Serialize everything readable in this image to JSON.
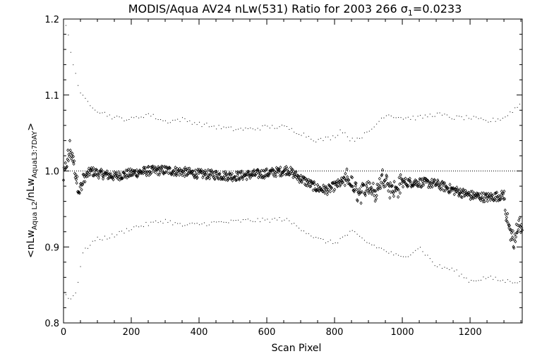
{
  "chart_data": {
    "type": "scatter",
    "title_main": "MODIS/Aqua AV24 nLw(531) Ratio for 2003 266 ",
    "title_sigma_symbol": "σ",
    "title_sigma_sub": "1",
    "title_sigma_value": "=0.0233",
    "xlabel": "Scan Pixel",
    "ylabel_parts": [
      {
        "text": "<nLw",
        "sub": false
      },
      {
        "text": "Aqua L2",
        "sub": true
      },
      {
        "text": "/nLw",
        "sub": false
      },
      {
        "text": "AquaL3:7DAY",
        "sub": true
      },
      {
        "text": ">",
        "sub": false
      }
    ],
    "xlim": [
      0,
      1354
    ],
    "ylim": [
      0.8,
      1.2
    ],
    "xticks": [
      0,
      200,
      400,
      600,
      800,
      1000,
      1200
    ],
    "xtick_labels": [
      "0",
      "200",
      "400",
      "600",
      "800",
      "1000",
      "1200"
    ],
    "yticks": [
      0.8,
      0.9,
      1.0,
      1.1,
      1.2
    ],
    "ytick_labels": [
      "0.8",
      "0.9",
      "1.0",
      "1.1",
      "1.2"
    ],
    "reference_line": 1.0,
    "series": [
      {
        "role": "ratio",
        "marker": "diamond",
        "keypoints": [
          [
            0,
            0.99
          ],
          [
            10,
            1.01
          ],
          [
            20,
            1.03
          ],
          [
            30,
            1.01
          ],
          [
            40,
            0.985
          ],
          [
            50,
            0.975
          ],
          [
            60,
            0.99
          ],
          [
            80,
            1.0
          ],
          [
            100,
            0.997
          ],
          [
            150,
            0.993
          ],
          [
            200,
            0.997
          ],
          [
            250,
            1.0
          ],
          [
            300,
            1.001
          ],
          [
            350,
            0.999
          ],
          [
            400,
            0.996
          ],
          [
            450,
            0.995
          ],
          [
            500,
            0.993
          ],
          [
            550,
            0.995
          ],
          [
            600,
            0.997
          ],
          [
            650,
            1.0
          ],
          [
            660,
            1.002
          ],
          [
            700,
            0.99
          ],
          [
            750,
            0.977
          ],
          [
            780,
            0.975
          ],
          [
            800,
            0.98
          ],
          [
            820,
            0.985
          ],
          [
            840,
            0.99
          ],
          [
            860,
            0.975
          ],
          [
            880,
            0.97
          ],
          [
            900,
            0.983
          ],
          [
            920,
            0.97
          ],
          [
            940,
            0.99
          ],
          [
            950,
            0.995
          ],
          [
            960,
            0.98
          ],
          [
            980,
            0.975
          ],
          [
            1000,
            0.985
          ],
          [
            1050,
            0.985
          ],
          [
            1100,
            0.983
          ],
          [
            1150,
            0.975
          ],
          [
            1200,
            0.968
          ],
          [
            1250,
            0.965
          ],
          [
            1300,
            0.968
          ],
          [
            1310,
            0.93
          ],
          [
            1320,
            0.92
          ],
          [
            1330,
            0.905
          ],
          [
            1340,
            0.925
          ],
          [
            1354,
            0.93
          ]
        ],
        "point_count": 940,
        "spread": 0.006
      },
      {
        "role": "upper_bound",
        "marker": "dot",
        "keypoints": [
          [
            0,
            1.195
          ],
          [
            10,
            1.19
          ],
          [
            20,
            1.16
          ],
          [
            30,
            1.14
          ],
          [
            40,
            1.12
          ],
          [
            50,
            1.1
          ],
          [
            100,
            1.08
          ],
          [
            150,
            1.07
          ],
          [
            200,
            1.068
          ],
          [
            250,
            1.075
          ],
          [
            300,
            1.065
          ],
          [
            350,
            1.068
          ],
          [
            400,
            1.062
          ],
          [
            450,
            1.058
          ],
          [
            500,
            1.055
          ],
          [
            550,
            1.055
          ],
          [
            600,
            1.058
          ],
          [
            650,
            1.058
          ],
          [
            700,
            1.05
          ],
          [
            750,
            1.04
          ],
          [
            800,
            1.045
          ],
          [
            820,
            1.055
          ],
          [
            850,
            1.04
          ],
          [
            900,
            1.05
          ],
          [
            950,
            1.075
          ],
          [
            1000,
            1.07
          ],
          [
            1050,
            1.07
          ],
          [
            1100,
            1.075
          ],
          [
            1150,
            1.07
          ],
          [
            1200,
            1.07
          ],
          [
            1250,
            1.065
          ],
          [
            1300,
            1.07
          ],
          [
            1354,
            1.09
          ]
        ],
        "point_count": 190,
        "spread": 0.003
      },
      {
        "role": "lower_bound",
        "marker": "dot",
        "keypoints": [
          [
            0,
            0.84
          ],
          [
            20,
            0.83
          ],
          [
            40,
            0.845
          ],
          [
            55,
            0.89
          ],
          [
            80,
            0.905
          ],
          [
            100,
            0.91
          ],
          [
            150,
            0.915
          ],
          [
            200,
            0.925
          ],
          [
            250,
            0.93
          ],
          [
            300,
            0.935
          ],
          [
            350,
            0.928
          ],
          [
            400,
            0.93
          ],
          [
            450,
            0.932
          ],
          [
            500,
            0.933
          ],
          [
            550,
            0.935
          ],
          [
            600,
            0.935
          ],
          [
            650,
            0.937
          ],
          [
            700,
            0.925
          ],
          [
            750,
            0.91
          ],
          [
            800,
            0.905
          ],
          [
            850,
            0.92
          ],
          [
            900,
            0.905
          ],
          [
            950,
            0.895
          ],
          [
            1000,
            0.885
          ],
          [
            1050,
            0.9
          ],
          [
            1100,
            0.875
          ],
          [
            1150,
            0.87
          ],
          [
            1200,
            0.855
          ],
          [
            1250,
            0.86
          ],
          [
            1300,
            0.855
          ],
          [
            1354,
            0.855
          ]
        ],
        "point_count": 190,
        "spread": 0.003
      }
    ]
  }
}
